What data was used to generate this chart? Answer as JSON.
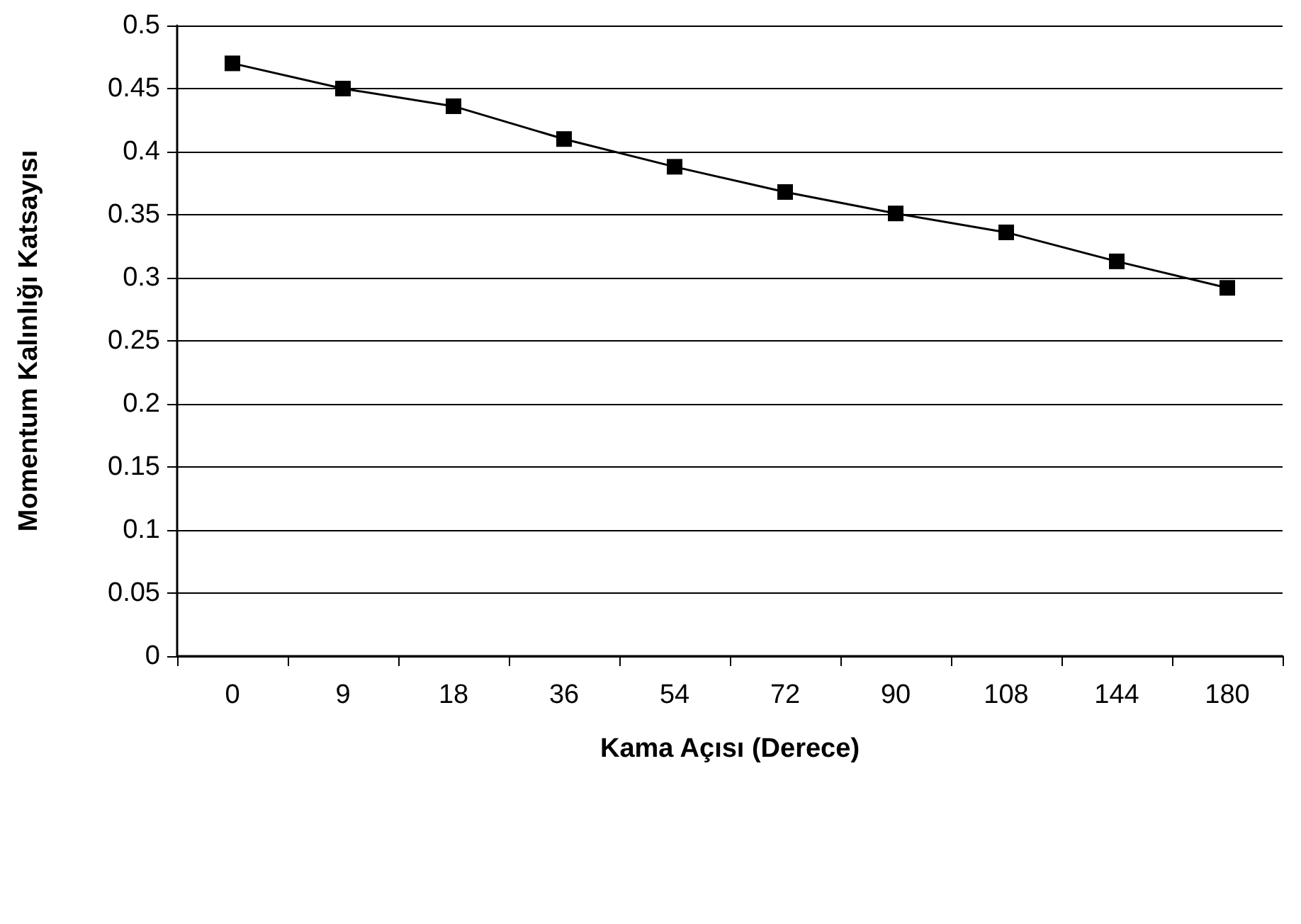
{
  "chart_data": {
    "type": "line",
    "xlabel": "Kama Açısı (Derece)",
    "ylabel": "Momentum Kalınlığı Katsayısı",
    "categories": [
      "0",
      "9",
      "18",
      "36",
      "54",
      "72",
      "90",
      "108",
      "144",
      "180"
    ],
    "series": [
      {
        "color": "#000000",
        "values": [
          0.47,
          0.45,
          0.436,
          0.41,
          0.388,
          0.368,
          0.351,
          0.336,
          0.313,
          0.292
        ]
      }
    ],
    "ylim": [
      0,
      0.5
    ],
    "yticks": [
      0,
      0.05,
      0.1,
      0.15,
      0.2,
      0.25,
      0.3,
      0.35,
      0.4,
      0.45,
      0.5
    ],
    "grid": "y",
    "marker": "square",
    "line_style": "solid"
  }
}
